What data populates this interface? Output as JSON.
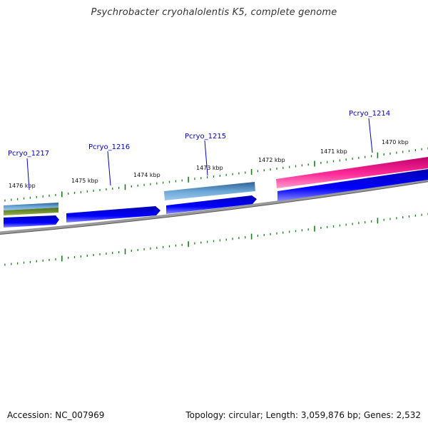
{
  "title": "Psychrobacter cryohalolentis K5, complete genome",
  "footer": {
    "accession": "Accession: NC_007969",
    "summary": "Topology: circular; Length: 3,059,876 bp; Genes: 2,532"
  },
  "kbp_labels": [
    "1476 kbp",
    "1475 kbp",
    "1474 kbp",
    "1473 kbp",
    "1472 kbp",
    "1471 kbp",
    "1470 kbp"
  ],
  "gene_labels": [
    "Pcryo_1217",
    "Pcryo_1216",
    "Pcryo_1215",
    "Pcryo_1214"
  ],
  "colors": {
    "background": "#ffffff",
    "backbone": "#808080",
    "cds": "#0000ee",
    "gene_blue": "#4682b4",
    "gene_green": "#6b8e23",
    "gene_pink": "#ff1493",
    "ticks": "#1a7f1a",
    "gene_label": "#0000cc"
  }
}
